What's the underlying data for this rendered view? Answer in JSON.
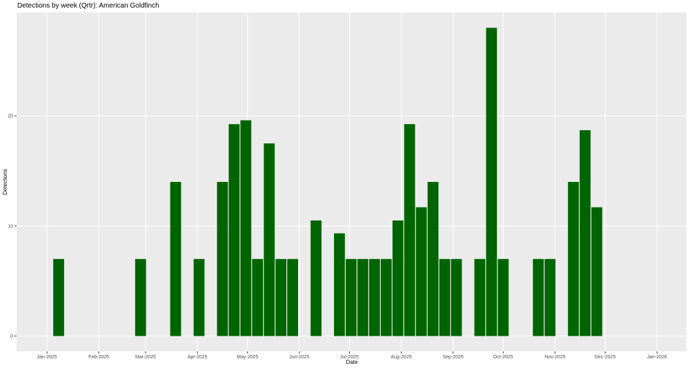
{
  "chart_data": {
    "type": "bar",
    "title": "Detections by week (Qrtr): American Goldfinch",
    "x_label": "Date",
    "y_label": "Detections",
    "color": "#006400",
    "grid": true,
    "bar_width": 6.5,
    "x": [
      7,
      56,
      77,
      91,
      105,
      112,
      119,
      126,
      133,
      140,
      147,
      161,
      175,
      182,
      189,
      196,
      203,
      210,
      217,
      224,
      231,
      238,
      245,
      259,
      266,
      273,
      294,
      301,
      315,
      322,
      329
    ],
    "values": [
      7,
      7,
      14,
      7,
      14,
      19.25,
      19.6,
      7,
      17.5,
      7,
      7,
      10.5,
      9.33,
      7,
      7,
      7,
      7,
      10.5,
      19.25,
      11.7,
      14,
      7,
      7,
      7,
      28,
      7,
      7,
      7,
      14,
      18.7,
      11.7
    ],
    "xlim": [
      -18.2,
      382.7
    ],
    "xticks": [
      {
        "value": 0,
        "label": "Jan-2025"
      },
      {
        "value": 31,
        "label": "Feb-2025"
      },
      {
        "value": 59,
        "label": "Mar-2025"
      },
      {
        "value": 90,
        "label": "Apr-2025"
      },
      {
        "value": 120,
        "label": "May-2025"
      },
      {
        "value": 151,
        "label": "Jun-2025"
      },
      {
        "value": 181,
        "label": "Jul-2025"
      },
      {
        "value": 212,
        "label": "Aug-2025"
      },
      {
        "value": 243,
        "label": "Sep-2025"
      },
      {
        "value": 273,
        "label": "Oct-2025"
      },
      {
        "value": 304,
        "label": "Nov-2025"
      },
      {
        "value": 334,
        "label": "Dec-2025"
      },
      {
        "value": 365,
        "label": "Jan-2026"
      }
    ],
    "ylim": [
      -1.4,
      29.4
    ],
    "yticks": [
      0,
      10,
      20
    ]
  }
}
